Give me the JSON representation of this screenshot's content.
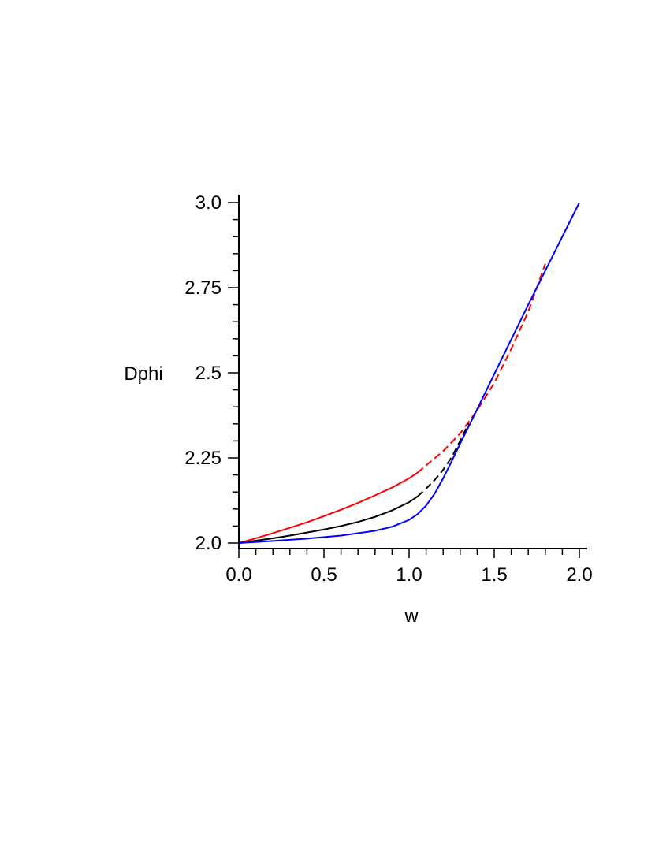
{
  "chart_data": {
    "type": "line",
    "xlabel": "w",
    "ylabel": "Dphi",
    "xlim": [
      0,
      2
    ],
    "ylim": [
      2,
      3
    ],
    "x_ticks": [
      {
        "value": 0,
        "label": "0.0"
      },
      {
        "value": 0.5,
        "label": "0.5"
      },
      {
        "value": 1,
        "label": "1.0"
      },
      {
        "value": 1.5,
        "label": "1.5"
      },
      {
        "value": 2,
        "label": "2.0"
      }
    ],
    "y_ticks": [
      {
        "value": 2,
        "label": "2.0"
      },
      {
        "value": 2.25,
        "label": "2.25"
      },
      {
        "value": 2.5,
        "label": "2.5"
      },
      {
        "value": 2.75,
        "label": "2.75"
      },
      {
        "value": 3,
        "label": "3.0"
      }
    ],
    "grid": false,
    "series": [
      {
        "color": "#ff0000",
        "style": "solid-then-dashed",
        "points": [
          [
            0,
            2.0
          ],
          [
            0.1,
            2.014
          ],
          [
            0.2,
            2.029
          ],
          [
            0.3,
            2.045
          ],
          [
            0.4,
            2.061
          ],
          [
            0.5,
            2.079
          ],
          [
            0.6,
            2.098
          ],
          [
            0.7,
            2.118
          ],
          [
            0.8,
            2.14
          ],
          [
            0.9,
            2.163
          ],
          [
            1.0,
            2.19
          ],
          [
            1.05,
            2.207
          ],
          [
            1.1,
            2.228
          ],
          [
            1.2,
            2.27
          ],
          [
            1.3,
            2.322
          ],
          [
            1.4,
            2.39
          ],
          [
            1.5,
            2.47
          ],
          [
            1.6,
            2.57
          ],
          [
            1.7,
            2.68
          ],
          [
            1.8,
            2.82
          ]
        ]
      },
      {
        "color": "#000000",
        "style": "solid-then-dashed",
        "points": [
          [
            0,
            2.0
          ],
          [
            0.1,
            2.007
          ],
          [
            0.2,
            2.014
          ],
          [
            0.3,
            2.022
          ],
          [
            0.4,
            2.031
          ],
          [
            0.5,
            2.04
          ],
          [
            0.6,
            2.05
          ],
          [
            0.7,
            2.062
          ],
          [
            0.8,
            2.077
          ],
          [
            0.9,
            2.096
          ],
          [
            1.0,
            2.12
          ],
          [
            1.05,
            2.137
          ],
          [
            1.1,
            2.16
          ],
          [
            1.15,
            2.185
          ],
          [
            1.2,
            2.215
          ],
          [
            1.25,
            2.252
          ],
          [
            1.3,
            2.3
          ],
          [
            1.35,
            2.352
          ]
        ]
      },
      {
        "color": "#0000ff",
        "style": "solid",
        "points": [
          [
            0,
            2.0
          ],
          [
            0.2,
            2.006
          ],
          [
            0.4,
            2.013
          ],
          [
            0.6,
            2.022
          ],
          [
            0.8,
            2.036
          ],
          [
            0.9,
            2.048
          ],
          [
            1.0,
            2.068
          ],
          [
            1.05,
            2.085
          ],
          [
            1.1,
            2.11
          ],
          [
            1.15,
            2.145
          ],
          [
            1.2,
            2.19
          ],
          [
            1.25,
            2.24
          ],
          [
            1.3,
            2.292
          ],
          [
            1.4,
            2.393
          ],
          [
            1.5,
            2.496
          ],
          [
            1.6,
            2.598
          ],
          [
            1.7,
            2.7
          ],
          [
            1.8,
            2.8
          ],
          [
            1.9,
            2.9
          ],
          [
            2.0,
            3.0
          ]
        ]
      }
    ]
  }
}
